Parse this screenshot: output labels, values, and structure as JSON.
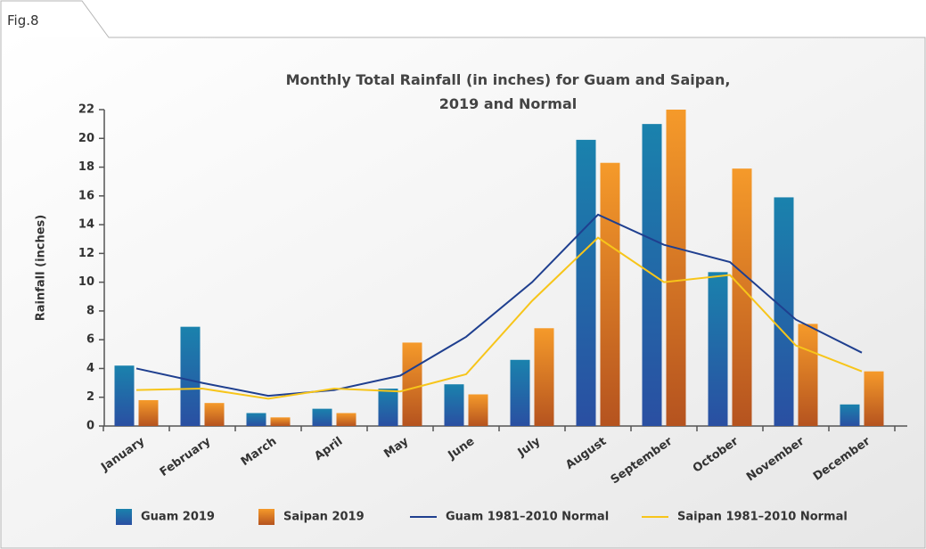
{
  "figure_label": "Fig.8",
  "chart_data": {
    "type": "bar",
    "title": "Monthly Total Rainfall (in inches) for Guam and Saipan, 2019 and Normal",
    "y_label": "Rainfall (inches)",
    "categories": [
      "January",
      "February",
      "March",
      "April",
      "May",
      "June",
      "July",
      "August",
      "September",
      "October",
      "November",
      "December"
    ],
    "series": [
      {
        "name": "Guam 2019",
        "type": "bar",
        "color": "#1a82ad",
        "values": [
          4.2,
          6.9,
          0.9,
          1.2,
          2.6,
          2.9,
          4.6,
          19.9,
          21.0,
          10.7,
          15.9,
          1.5
        ]
      },
      {
        "name": "Saipan 2019",
        "type": "bar",
        "color": "#f59a2a",
        "values": [
          1.8,
          1.6,
          0.6,
          0.9,
          5.8,
          2.2,
          6.8,
          18.3,
          22.0,
          17.9,
          7.1,
          3.8
        ]
      },
      {
        "name": "Guam 1981–2010 Normal",
        "type": "line",
        "color": "#1f3f8f",
        "values": [
          4.0,
          3.0,
          2.1,
          2.5,
          3.5,
          6.2,
          10.0,
          14.7,
          12.6,
          11.4,
          7.4,
          5.1
        ]
      },
      {
        "name": "Saipan 1981–2010 Normal",
        "type": "line",
        "color": "#f7c51a",
        "values": [
          2.5,
          2.6,
          1.9,
          2.6,
          2.4,
          3.6,
          8.7,
          13.1,
          10.0,
          10.5,
          5.6,
          3.8
        ]
      }
    ],
    "ylim": [
      0,
      22
    ],
    "yticks": [
      0,
      2,
      4,
      6,
      8,
      10,
      12,
      14,
      16,
      18,
      20,
      22
    ],
    "grid": false
  }
}
